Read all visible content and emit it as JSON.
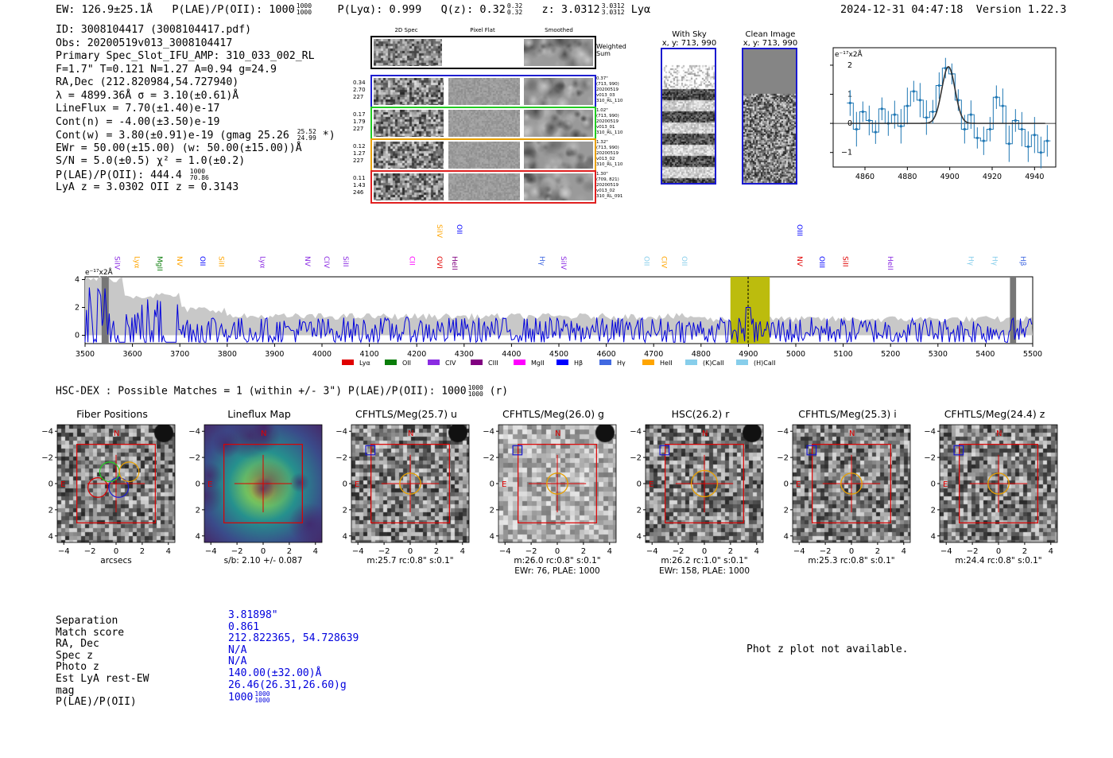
{
  "header": {
    "ew": "EW: 126.9±25.1Å",
    "plae": "P(LAE)/P(OII): 1000",
    "plae_hi": "1000",
    "plae_lo": "1000",
    "plya": "P(Lyα): 0.999",
    "qz": "Q(z): 0.32",
    "qz_hi": "0.32",
    "qz_lo": "0.32",
    "z": "z: 3.0312",
    "z_hi": "3.0312",
    "z_lo": "3.0312",
    "z_line": "Lyα",
    "timestamp": "2024-12-31 04:47:18",
    "version": "Version 1.22.3"
  },
  "info": {
    "lines": [
      "ID: 3008104417 (3008104417.pdf)",
      "Obs: 20200519v013_3008104417",
      "Primary Spec_Slot_IFU_AMP: 310_033_002_RL",
      "F=1.7\"  T=0.121  N=1.27  A=0.94  g=24.9",
      "RA,Dec (212.820984,54.727940)",
      "λ = 4899.36Å  σ = 3.10(±0.61)Å",
      "LineFlux = 7.70(±1.40)e-17",
      "Cont(n) = -4.00(±3.50)e-19",
      "Cont(w) = 3.80(±0.91)e-19 (gmag 25.26",
      "EWr = 50.00(±15.00) (w: 50.00(±15.00))Å",
      "S/N = 5.0(±0.5)  χ² = 1.0(±0.2)",
      "P(LAE)/P(OII): 444.4",
      "LyA z = 3.0302  OII z = 0.3143"
    ],
    "gmag_hi": "25.52",
    "gmag_lo": "24.99",
    "gmag_tail": "*)",
    "plae_hi": "1000",
    "plae_lo": "70.86"
  },
  "spec2d": {
    "columns": [
      "2D Spec",
      "Pixel Flat",
      "Smoothed"
    ],
    "weighted_label": "Weighted Sum",
    "rows": [
      {
        "left": [
          "0.34",
          "2.70",
          "227"
        ],
        "right": [
          "0.37\"",
          "(713, 990)",
          "20200519",
          "v013_03",
          "310_RL_110"
        ],
        "color": "#1f1fd0"
      },
      {
        "left": [
          "0.17",
          "1.79",
          "227"
        ],
        "right": [
          "1.02\"",
          "(713, 990)",
          "20200519",
          "v013_01",
          "310_RL_110"
        ],
        "color": "#22cc22"
      },
      {
        "left": [
          "0.12",
          "1.27",
          "227"
        ],
        "right": [
          "1.32\"",
          "(713, 990)",
          "20200519",
          "v013_02",
          "310_RL_110"
        ],
        "color": "#e8a000"
      },
      {
        "left": [
          "0.11",
          "1.43",
          "246"
        ],
        "right": [
          "1.30\"",
          "(709, 821)",
          "20200519",
          "v013_02",
          "310_RL_091"
        ],
        "color": "#e02020"
      }
    ]
  },
  "sky": {
    "with_sky_title": "With Sky",
    "with_sky_coords": "x, y: 713, 990",
    "clean_title": "Clean Image",
    "clean_coords": "x, y: 713, 990"
  },
  "zoom_chart": {
    "ylabel": "e⁻¹⁷x2Å",
    "xticks": [
      "4860",
      "4880",
      "4900",
      "4920",
      "4940"
    ],
    "yticks": [
      "2",
      "1",
      "0",
      "−1"
    ]
  },
  "chart_data": [
    {
      "type": "line",
      "title": "",
      "ylabel": "e⁻¹⁷x2Å",
      "xlim": [
        4845,
        4950
      ],
      "ylim": [
        -1.5,
        2.6
      ],
      "x": [
        4853,
        4856,
        4859,
        4862,
        4865,
        4868,
        4871,
        4874,
        4877,
        4880,
        4883,
        4886,
        4889,
        4892,
        4895,
        4898,
        4901,
        4904,
        4907,
        4910,
        4913,
        4916,
        4919,
        4922,
        4925,
        4928,
        4931,
        4934,
        4937,
        4940,
        4943,
        4946
      ],
      "y": [
        0.7,
        -0.2,
        0.4,
        0.1,
        -0.3,
        0.5,
        0.0,
        0.3,
        -0.1,
        0.6,
        1.1,
        0.8,
        0.2,
        0.4,
        1.3,
        1.9,
        1.7,
        0.8,
        -0.2,
        0.3,
        -0.5,
        -0.6,
        -0.2,
        0.9,
        0.6,
        -0.7,
        0.1,
        -0.2,
        -0.8,
        -0.4,
        -1.0,
        -0.6
      ],
      "xticks": [
        4860,
        4880,
        4900,
        4920,
        4940
      ],
      "yticks": [
        -1,
        0,
        1,
        2
      ],
      "fit": {
        "center": 4899.36,
        "sigma": 3.1,
        "amplitude": 1.95
      }
    },
    {
      "type": "line",
      "title": "",
      "ylabel": "e⁻¹⁷x2Å",
      "xlim": [
        3500,
        5500
      ],
      "ylim": [
        -0.6,
        4.2
      ],
      "xticks": [
        3500,
        3600,
        3700,
        3800,
        3900,
        4000,
        4100,
        4200,
        4300,
        4400,
        4500,
        4600,
        4700,
        4800,
        4900,
        5000,
        5100,
        5200,
        5300,
        5400,
        5500
      ],
      "yticks": [
        0,
        2,
        4
      ],
      "highlight_band": [
        4862,
        4945
      ],
      "line_marker": 4899.36,
      "legend": [
        {
          "name": "Lyα",
          "color": "#e00000"
        },
        {
          "name": "OII",
          "color": "#0a7d0a"
        },
        {
          "name": "CIV",
          "color": "#8a2be2"
        },
        {
          "name": "CIII",
          "color": "#800080"
        },
        {
          "name": "MgII",
          "color": "#ff00ff"
        },
        {
          "name": "Hβ",
          "color": "#0000ff"
        },
        {
          "name": "Hγ",
          "color": "#4169e1"
        },
        {
          "name": "HeII",
          "color": "#ffa500"
        },
        {
          "name": "(K)CaII",
          "color": "#87ceeb"
        },
        {
          "name": "(H)CaII",
          "color": "#87ceeb"
        }
      ],
      "line_labels": [
        {
          "name": "SiIV",
          "x": 3558,
          "color": "#8a2be2",
          "row": 1
        },
        {
          "name": "Lyα",
          "x": 3600,
          "color": "#ffa500",
          "row": 1
        },
        {
          "name": "MgII",
          "x": 3648,
          "color": "#0a7d0a",
          "row": 1
        },
        {
          "name": "NV",
          "x": 3690,
          "color": "#ffa500",
          "row": 1
        },
        {
          "name": "OII",
          "x": 3738,
          "color": "#0000ff",
          "row": 1
        },
        {
          "name": "SiII",
          "x": 3778,
          "color": "#ffa500",
          "row": 1
        },
        {
          "name": "Lyα",
          "x": 3865,
          "color": "#8a2be2",
          "row": 1
        },
        {
          "name": "NV",
          "x": 3960,
          "color": "#8a2be2",
          "row": 1
        },
        {
          "name": "CIV",
          "x": 4000,
          "color": "#8a2be2",
          "row": 1
        },
        {
          "name": "SiII",
          "x": 4040,
          "color": "#8a2be2",
          "row": 1
        },
        {
          "name": "CII",
          "x": 4180,
          "color": "#ff00ff",
          "row": 1
        },
        {
          "name": "OVI",
          "x": 4238,
          "color": "#e00000",
          "row": 1
        },
        {
          "name": "HeII",
          "x": 4270,
          "color": "#800080",
          "row": 1
        },
        {
          "name": "SiIV",
          "x": 4238,
          "color": "#ffa500",
          "row": 0
        },
        {
          "name": "OII",
          "x": 4280,
          "color": "#0000ff",
          "row": 0
        },
        {
          "name": "Hγ",
          "x": 4455,
          "color": "#4169e1",
          "row": 1
        },
        {
          "name": "SiIV",
          "x": 4500,
          "color": "#8a2be2",
          "row": 1
        },
        {
          "name": "OII",
          "x": 4675,
          "color": "#87ceeb",
          "row": 1
        },
        {
          "name": "CIV",
          "x": 4712,
          "color": "#ffa500",
          "row": 1
        },
        {
          "name": "OII",
          "x": 4755,
          "color": "#87ceeb",
          "row": 1
        },
        {
          "name": "OIII",
          "x": 4998,
          "color": "#0000ff",
          "row": 0
        },
        {
          "name": "NV",
          "x": 4998,
          "color": "#e00000",
          "row": 1
        },
        {
          "name": "OIII",
          "x": 5045,
          "color": "#0000ff",
          "row": 1
        },
        {
          "name": "SiII",
          "x": 5095,
          "color": "#e00000",
          "row": 1
        },
        {
          "name": "HeII",
          "x": 5190,
          "color": "#8a2be2",
          "row": 1
        },
        {
          "name": "Hγ",
          "x": 5360,
          "color": "#87ceeb",
          "row": 1
        },
        {
          "name": "Hγ",
          "x": 5410,
          "color": "#87ceeb",
          "row": 1
        },
        {
          "name": "Hβ",
          "x": 5470,
          "color": "#4169e1",
          "row": 1
        }
      ]
    }
  ],
  "hsc": {
    "title": "HSC-DEX : Possible Matches = 1 (within +/- 3\")  P(LAE)/P(OII): 1000",
    "plae_hi": "1000",
    "plae_lo": "1000",
    "band": "(r)",
    "north": "N",
    "east": "E",
    "panels": [
      {
        "title": "Fiber Positions",
        "caption": "arcsecs",
        "caption2": ""
      },
      {
        "title": "Lineflux Map",
        "caption": "s/b: 2.10 +/- 0.087",
        "caption2": ""
      },
      {
        "title": "CFHTLS/Meg(25.7) u",
        "caption": "m:25.7 rc:0.8\"  s:0.1\"",
        "caption2": ""
      },
      {
        "title": "CFHTLS/Meg(26.0) g",
        "caption": "m:26.0 rc:0.8\"  s:0.1\"",
        "caption2": "EWr: 76, PLAE: 1000"
      },
      {
        "title": "HSC(26.2) r",
        "caption": "m:26.2 rc:1.0\"  s:0.1\"",
        "caption2": "EWr: 158, PLAE: 1000"
      },
      {
        "title": "CFHTLS/Meg(25.3) i",
        "caption": "m:25.3 rc:0.8\"  s:0.1\"",
        "caption2": ""
      },
      {
        "title": "CFHTLS/Meg(24.4) z",
        "caption": "m:24.4 rc:0.8\"  s:0.1\"",
        "caption2": ""
      }
    ],
    "xticks": [
      "−4",
      "−2",
      "0",
      "2",
      "4"
    ],
    "yticks": [
      "4",
      "2",
      "0",
      "−2",
      "−4"
    ]
  },
  "match_table": {
    "labels": [
      "Separation",
      "Match score",
      "RA, Dec",
      "Spec z",
      "Photo z",
      "Est LyA rest-EW",
      "mag",
      "P(LAE)/P(OII)"
    ],
    "values": [
      "3.81898\"",
      "0.861",
      "212.822365, 54.728639",
      "N/A",
      "N/A",
      "140.00(±32.00)Å",
      "26.46(26.31,26.60)g",
      "1000"
    ],
    "plae_hi": "1000",
    "plae_lo": "1000"
  },
  "phot_z": "Phot z plot not available."
}
